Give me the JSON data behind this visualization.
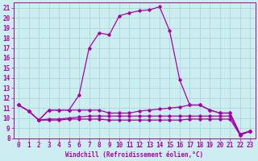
{
  "xlabel": "Windchill (Refroidissement éolien,°C)",
  "ylabel": "",
  "bg_color": "#cceef0",
  "grid_color": "#aad8dc",
  "line_color": "#aa00aa",
  "xlim": [
    -0.5,
    23.5
  ],
  "ylim": [
    8,
    21.5
  ],
  "xticks": [
    0,
    1,
    2,
    3,
    4,
    5,
    6,
    7,
    8,
    9,
    10,
    11,
    12,
    13,
    14,
    15,
    16,
    17,
    18,
    19,
    20,
    21,
    22,
    23
  ],
  "yticks": [
    8,
    9,
    10,
    11,
    12,
    13,
    14,
    15,
    16,
    17,
    18,
    19,
    20,
    21
  ],
  "peak_x": [
    0,
    1,
    2,
    3,
    4,
    5,
    6,
    7,
    8,
    9,
    10,
    11,
    12,
    13,
    14,
    15,
    16,
    17,
    18,
    19,
    20,
    21,
    22,
    23
  ],
  "peak_y": [
    11.3,
    10.7,
    9.8,
    10.8,
    10.8,
    10.8,
    12.3,
    17.0,
    18.5,
    18.3,
    20.2,
    20.5,
    20.7,
    20.8,
    21.1,
    18.7,
    13.8,
    11.3,
    11.3,
    10.8,
    10.5,
    10.5,
    8.4,
    8.7
  ],
  "slope_x": [
    0,
    1,
    2,
    3,
    4,
    5,
    6,
    7,
    8,
    9,
    10,
    11,
    12,
    13,
    14,
    15,
    16,
    17,
    18,
    19,
    20,
    21,
    22,
    23
  ],
  "slope_y": [
    11.3,
    10.7,
    9.8,
    10.8,
    10.8,
    10.8,
    10.8,
    10.8,
    10.8,
    10.5,
    10.5,
    10.5,
    10.7,
    10.8,
    10.9,
    11.0,
    11.1,
    11.3,
    11.3,
    10.8,
    10.5,
    10.5,
    8.4,
    8.7
  ],
  "flat1_x": [
    0,
    1,
    2,
    3,
    4,
    5,
    6,
    7,
    8,
    9,
    10,
    11,
    12,
    13,
    14,
    15,
    16,
    17,
    18,
    19,
    20,
    21,
    22,
    23
  ],
  "flat1_y": [
    11.3,
    10.7,
    9.8,
    9.8,
    9.8,
    9.9,
    9.9,
    9.9,
    9.9,
    9.8,
    9.8,
    9.8,
    9.8,
    9.8,
    9.8,
    9.8,
    9.8,
    9.9,
    9.9,
    9.9,
    9.9,
    9.9,
    8.3,
    8.7
  ],
  "flat2_x": [
    2,
    3,
    4,
    5,
    6,
    7,
    8,
    9,
    10,
    11,
    12,
    13,
    14,
    15,
    16,
    17,
    18,
    19,
    20,
    21,
    22,
    23
  ],
  "flat2_y": [
    9.8,
    9.9,
    9.9,
    10.0,
    10.1,
    10.2,
    10.2,
    10.2,
    10.2,
    10.2,
    10.2,
    10.2,
    10.2,
    10.2,
    10.2,
    10.2,
    10.2,
    10.2,
    10.2,
    10.2,
    8.3,
    8.7
  ],
  "marker": "D",
  "marker_size": 1.8,
  "line_width": 0.9,
  "font_size": 5.5
}
